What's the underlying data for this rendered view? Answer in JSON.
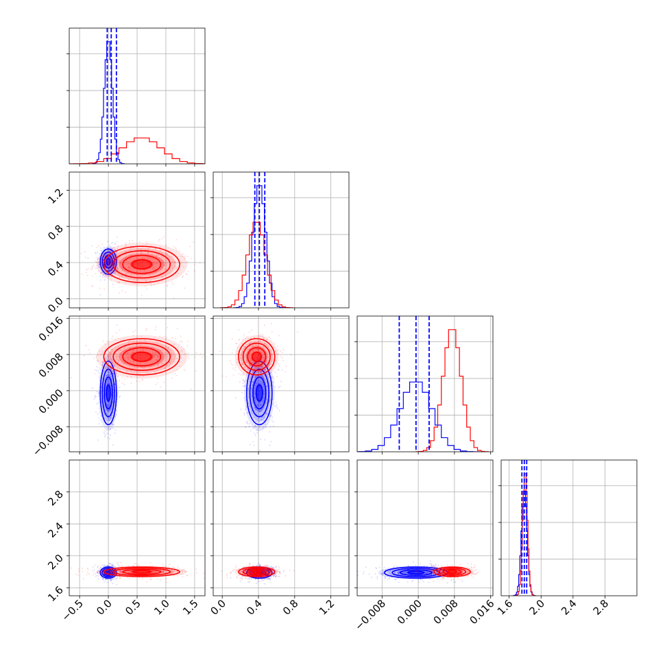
{
  "chart_data": {
    "type": "corner",
    "colors": {
      "blue": "#0000ff",
      "red": "#ff0000",
      "grid": "#b0b0b0"
    },
    "params": [
      {
        "ticks": [
          -0.5,
          0.0,
          0.5,
          1.0,
          1.5
        ],
        "tick_labels": [
          "−0.5",
          "0.0",
          "0.5",
          "1.0",
          "1.5"
        ],
        "range": [
          -0.68,
          1.68
        ]
      },
      {
        "ticks": [
          0.0,
          0.4,
          0.8,
          1.2
        ],
        "tick_labels": [
          "0.0",
          "0.4",
          "0.8",
          "1.2"
        ],
        "range": [
          -0.1,
          1.4
        ]
      },
      {
        "ticks": [
          -0.008,
          0.0,
          0.008,
          0.016
        ],
        "tick_labels": [
          "−0.008",
          "0.000",
          "0.008",
          "0.016"
        ],
        "range": [
          -0.0135,
          0.0165
        ]
      },
      {
        "ticks": [
          1.6,
          2.0,
          2.4,
          2.8
        ],
        "tick_labels": [
          "1.6",
          "2.0",
          "2.4",
          "2.8"
        ],
        "range": [
          1.5,
          3.2
        ]
      }
    ],
    "samples": [
      {
        "name": "",
        "color": "blue",
        "mean": [
          0.0,
          0.41,
          -0.0005,
          1.79
        ],
        "sd": [
          0.07,
          0.07,
          0.0035,
          0.035
        ],
        "quantiles": [
          [
            -0.02,
            0.05,
            0.14
          ],
          [
            0.36,
            0.41,
            0.47
          ],
          [
            -0.0042,
            -0.0005,
            0.0024
          ],
          [
            1.76,
            1.79,
            1.82
          ]
        ]
      },
      {
        "name": "",
        "color": "red",
        "mean": [
          0.58,
          0.38,
          0.0075,
          1.8
        ],
        "sd": [
          0.33,
          0.1,
          0.002,
          0.03
        ]
      }
    ]
  }
}
